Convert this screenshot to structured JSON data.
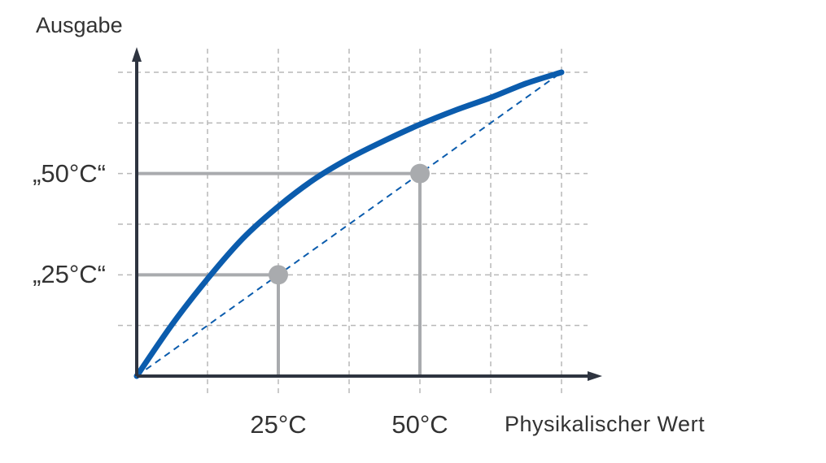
{
  "chart_data": {
    "type": "line",
    "xlabel": "Physikalischer Wert",
    "ylabel": "Ausgabe",
    "xlim": [
      0,
      6
    ],
    "ylim": [
      0,
      6
    ],
    "grid": true,
    "x_ticks": [
      {
        "value": 2,
        "label": "25°C"
      },
      {
        "value": 4,
        "label": "50°C"
      }
    ],
    "y_ticks": [
      {
        "value": 2,
        "label": "„25°C“"
      },
      {
        "value": 4,
        "label": "„50°C“"
      }
    ],
    "series": [
      {
        "style": "solid",
        "color": "#0B5CAD",
        "x": [
          0,
          0.5,
          1,
          1.5,
          2,
          2.5,
          3,
          3.5,
          4,
          4.5,
          5,
          5.5,
          6
        ],
        "y": [
          0,
          1.02,
          1.92,
          2.72,
          3.35,
          3.88,
          4.3,
          4.65,
          4.97,
          5.25,
          5.5,
          5.78,
          6
        ]
      },
      {
        "style": "dashed",
        "color": "#0B5CAD",
        "x": [
          0,
          6
        ],
        "y": [
          0,
          6
        ]
      }
    ],
    "reference_points": [
      {
        "x": 2,
        "y": 2
      },
      {
        "x": 4,
        "y": 4
      }
    ],
    "colors": {
      "axis": "#2E3440",
      "grid": "#B8B8B8",
      "reference": "#A9ABAE"
    }
  }
}
